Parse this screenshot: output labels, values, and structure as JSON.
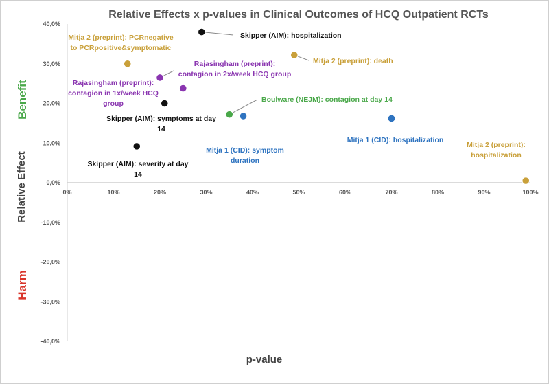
{
  "chart_data": {
    "type": "scatter",
    "title": "Relative Effects x p-values in Clinical Outcomes of HCQ Outpatient RCTs",
    "xlabel": "p-value",
    "ylabel": "Relative Effect",
    "xlim": [
      0,
      100
    ],
    "ylim": [
      -40,
      40
    ],
    "x_ticks": [
      "0%",
      "10%",
      "20%",
      "30%",
      "40%",
      "50%",
      "60%",
      "70%",
      "80%",
      "90%",
      "100%"
    ],
    "y_ticks": [
      "40,0%",
      "30,0%",
      "20,0%",
      "10,0%",
      "0,0%",
      "-10,0%",
      "-20,0%",
      "-30,0%",
      "-40,0%"
    ],
    "region_labels": [
      {
        "text": "Benefit",
        "color": "#4aa84a"
      },
      {
        "text": "Harm",
        "color": "#d9352b"
      }
    ],
    "grid": false,
    "colors": {
      "skipper": "#111111",
      "mitja2": "#c9a03a",
      "rajasingham": "#8a35b0",
      "boulware": "#4aa84a",
      "mitja1": "#2f74c0"
    },
    "points": [
      {
        "x": 29,
        "y": 38,
        "label": [
          "Skipper (AIM): hospitalization"
        ],
        "color": "#111111"
      },
      {
        "x": 13,
        "y": 30,
        "label": [
          "Mitja 2 (preprint): PCRnegative",
          "to PCRpositive&symptomatic"
        ],
        "color": "#c9a03a"
      },
      {
        "x": 49,
        "y": 32.2,
        "label": [
          "Mitja 2 (preprint): death"
        ],
        "color": "#c9a03a"
      },
      {
        "x": 20,
        "y": 26.5,
        "label": [
          "Rajasingham (preprint):",
          "contagion in 2x/week HCQ group"
        ],
        "color": "#8a35b0"
      },
      {
        "x": 25,
        "y": 23.8,
        "label": [
          "Rajasingham (preprint):",
          "contagion in 1x/week HCQ",
          "group"
        ],
        "color": "#8a35b0"
      },
      {
        "x": 21,
        "y": 20,
        "label": [
          "Skipper (AIM): symptoms at day",
          "14"
        ],
        "color": "#111111"
      },
      {
        "x": 35,
        "y": 17.2,
        "label": [
          "Boulware (NEJM): contagion at day 14"
        ],
        "color": "#4aa84a"
      },
      {
        "x": 38,
        "y": 16.8,
        "label": [
          "Mitja 1 (CID): symptom",
          "duration"
        ],
        "color": "#2f74c0"
      },
      {
        "x": 70,
        "y": 16.2,
        "label": [
          "Mitja 1 (CID): hospitalization"
        ],
        "color": "#2f74c0"
      },
      {
        "x": 15,
        "y": 9.2,
        "label": [
          "Skipper (AIM): severity at day",
          "14"
        ],
        "color": "#111111"
      },
      {
        "x": 99,
        "y": 0.5,
        "label": [
          "Mitja 2 (preprint):",
          "hospitalization"
        ],
        "color": "#c9a03a"
      }
    ]
  }
}
